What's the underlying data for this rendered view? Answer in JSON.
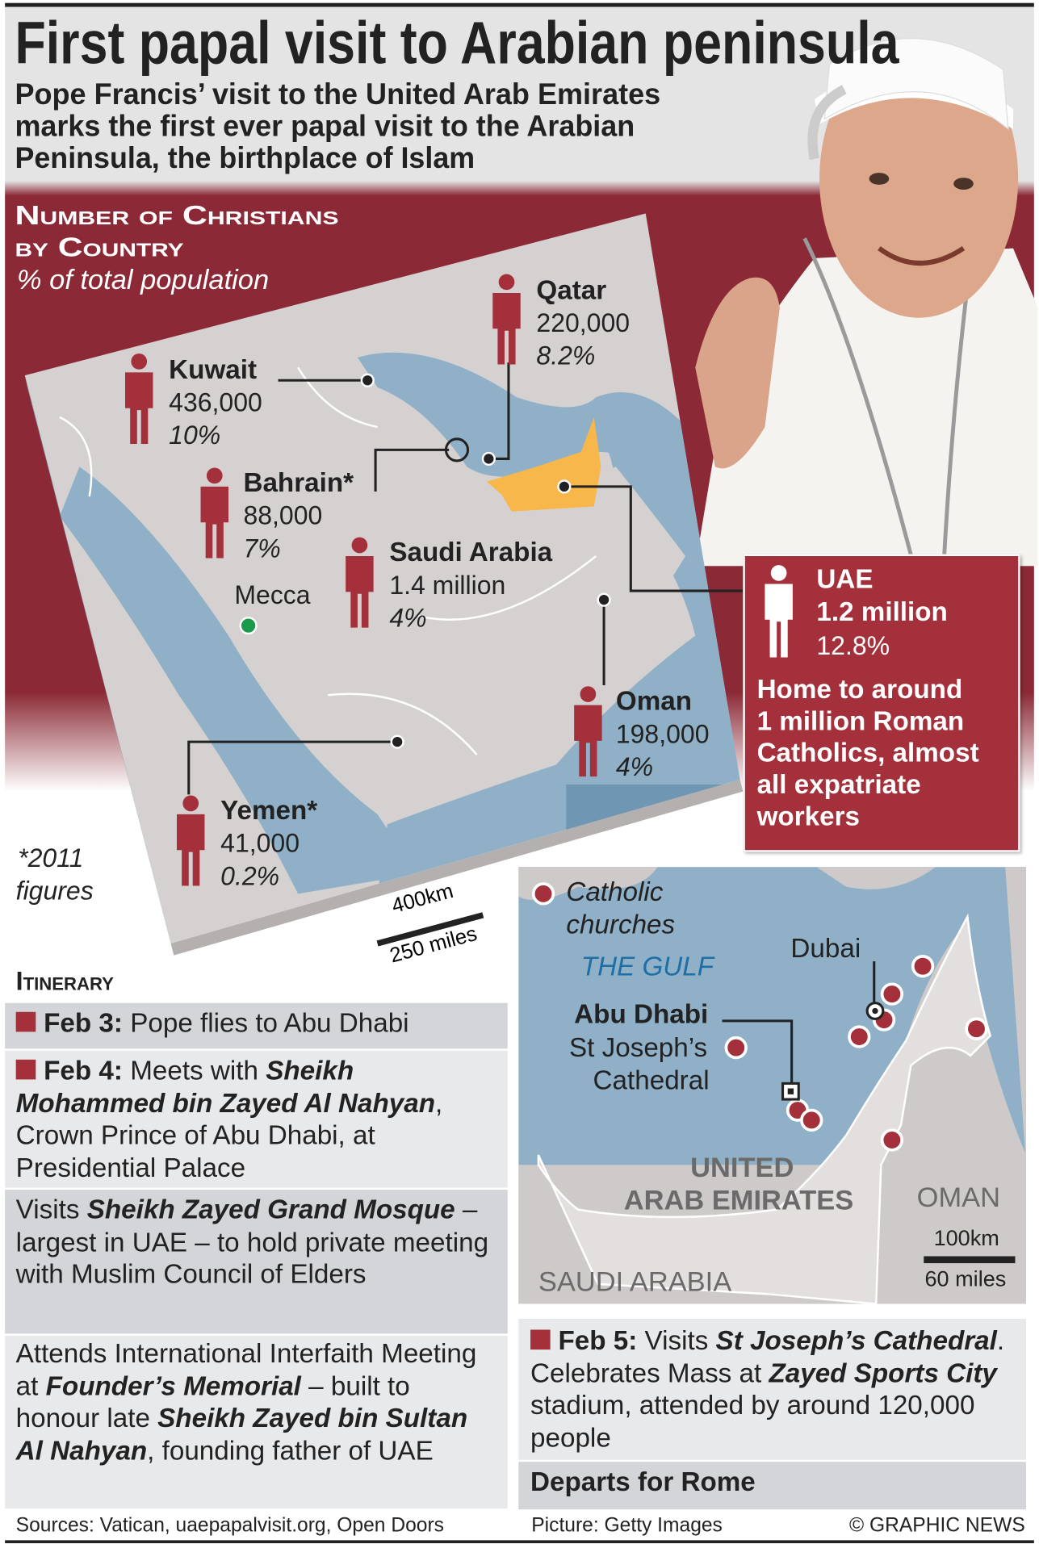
{
  "header": {
    "title": "First papal visit to Arabian peninsula",
    "subtitle_lines": [
      "Pope Francis’ visit to the United Arab Emirates",
      "marks the first ever papal visit to the Arabian",
      "Peninsula, the birthplace of Islam"
    ]
  },
  "christians_map": {
    "heading_lines": [
      "Number of Christians",
      "by Country"
    ],
    "subheading": "% of total population",
    "countries": [
      {
        "name": "Qatar",
        "count": "220,000",
        "percent": "8.2%"
      },
      {
        "name": "Kuwait",
        "count": "436,000",
        "percent": "10%"
      },
      {
        "name": "Bahrain*",
        "count": "88,000",
        "percent": "7%"
      },
      {
        "name": "Saudi Arabia",
        "count": "1.4 million",
        "percent": "4%"
      },
      {
        "name": "Oman",
        "count": "198,000",
        "percent": "4%"
      },
      {
        "name": "Yemen*",
        "count": "41,000",
        "percent": "0.2%"
      }
    ],
    "mecca_label": "Mecca",
    "footnote_lines": [
      "*2011",
      "figures"
    ],
    "scale_km": "400km",
    "scale_miles": "250 miles",
    "uae_box": {
      "name": "UAE",
      "count": "1.2 million",
      "percent": "12.8%",
      "note_lines": [
        "Home to around",
        "1 million Roman",
        "Catholics, almost",
        "all expatriate",
        "workers"
      ]
    }
  },
  "uae_map": {
    "legend": [
      "Catholic",
      "churches"
    ],
    "gulf_label": "THE GULF",
    "dubai_label": "Dubai",
    "abu_dhabi_label": "Abu Dhabi",
    "cathedral_lines": [
      "St Joseph’s",
      "Cathedral"
    ],
    "country_lines": [
      "UNITED",
      "ARAB EMIRATES"
    ],
    "oman_label": "OMAN",
    "saudi_label": "SAUDI ARABIA",
    "scale_km": "100km",
    "scale_miles": "60 miles"
  },
  "itinerary": {
    "heading": "Itinerary",
    "items": [
      [
        {
          "t": "Feb 3:",
          "s": "b",
          "sq": true
        },
        {
          "t": " Pope flies to Abu Dhabi",
          "s": ""
        }
      ],
      [
        {
          "t": "Feb 4:",
          "s": "b",
          "sq": true
        },
        {
          "t": " Meets with ",
          "s": ""
        },
        {
          "t": "Sheikh Mohammed bin Zayed Al Nahyan",
          "s": "bi"
        },
        {
          "t": ", Crown Prince of Abu Dhabi, at Presidential Palace",
          "s": ""
        }
      ],
      [
        {
          "t": "Visits ",
          "s": ""
        },
        {
          "t": "Sheikh Zayed Grand Mosque",
          "s": "bi"
        },
        {
          "t": " – largest in UAE – to hold private meeting with Muslim Council of Elders",
          "s": ""
        }
      ],
      [
        {
          "t": "Attends International Interfaith Meeting at ",
          "s": ""
        },
        {
          "t": "Founder’s Memorial",
          "s": "bi"
        },
        {
          "t": " – built to honour late ",
          "s": ""
        },
        {
          "t": "Sheikh Zayed bin Sultan Al Nahyan",
          "s": "bi"
        },
        {
          "t": ", founding father of UAE",
          "s": ""
        }
      ],
      [
        {
          "t": "Feb 5:",
          "s": "b",
          "sq": true
        },
        {
          "t": " Visits ",
          "s": ""
        },
        {
          "t": "St Joseph’s Cathedral",
          "s": "bi"
        },
        {
          "t": ". Celebrates Mass at ",
          "s": ""
        },
        {
          "t": "Zayed Sports City",
          "s": "bi"
        },
        {
          "t": " stadium, attended by around 120,000 people",
          "s": ""
        }
      ],
      [
        {
          "t": "Departs for Rome",
          "s": "b"
        }
      ]
    ]
  },
  "footer": {
    "sources": "Sources: Vatican, uaepapalvisit.org, Open Doors",
    "picture": "Picture: Getty Images",
    "credit": "© GRAPHIC NEWS"
  },
  "colors": {
    "accent_red": "#a3303a",
    "sea": "#8fb0c7",
    "uae_highlight": "#f7b74a",
    "mecca": "#1a9a4a"
  }
}
